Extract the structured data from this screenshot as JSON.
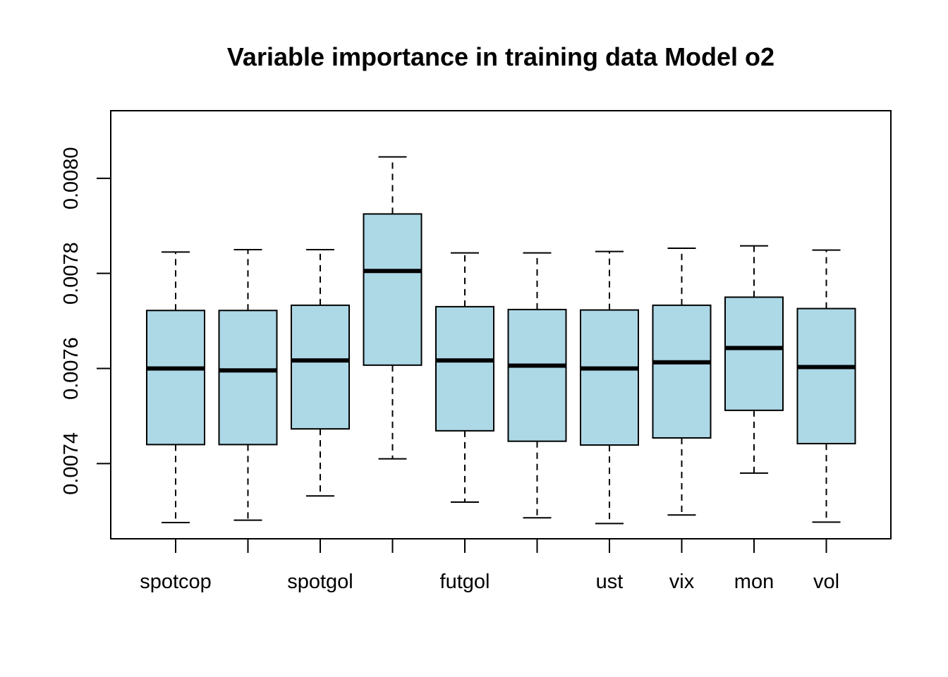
{
  "chart_data": {
    "type": "boxplot",
    "title": "Variable importance in training data Model o2",
    "xlabel": "",
    "ylabel": "",
    "categories": [
      "spotcop",
      "",
      "spotgol",
      "",
      "futgol",
      "",
      "ust",
      "vix",
      "mon",
      "vol"
    ],
    "ylim": [
      0.007276,
      0.008108
    ],
    "y_ticks": [
      0.0074,
      0.0076,
      0.0078,
      0.008
    ],
    "y_tick_labels": [
      "0.0074",
      "0.0076",
      "0.0078",
      "0.0080"
    ],
    "box_color": "#add8e6",
    "grid": false,
    "boxes": [
      {
        "min": 0.007276,
        "q1": 0.00744,
        "median": 0.0076,
        "q3": 0.007722,
        "max": 0.007845
      },
      {
        "min": 0.007281,
        "q1": 0.00744,
        "median": 0.007596,
        "q3": 0.007722,
        "max": 0.00785
      },
      {
        "min": 0.007332,
        "q1": 0.007473,
        "median": 0.007617,
        "q3": 0.007733,
        "max": 0.00785
      },
      {
        "min": 0.00741,
        "q1": 0.007607,
        "median": 0.007805,
        "q3": 0.007925,
        "max": 0.008045
      },
      {
        "min": 0.007319,
        "q1": 0.007469,
        "median": 0.007617,
        "q3": 0.00773,
        "max": 0.007843
      },
      {
        "min": 0.007286,
        "q1": 0.007447,
        "median": 0.007606,
        "q3": 0.007724,
        "max": 0.007843
      },
      {
        "min": 0.007274,
        "q1": 0.007439,
        "median": 0.0076,
        "q3": 0.007723,
        "max": 0.007846
      },
      {
        "min": 0.007292,
        "q1": 0.007454,
        "median": 0.007613,
        "q3": 0.007733,
        "max": 0.007853
      },
      {
        "min": 0.00738,
        "q1": 0.007512,
        "median": 0.007643,
        "q3": 0.00775,
        "max": 0.007858
      },
      {
        "min": 0.007277,
        "q1": 0.007442,
        "median": 0.007603,
        "q3": 0.007726,
        "max": 0.007849
      }
    ]
  }
}
